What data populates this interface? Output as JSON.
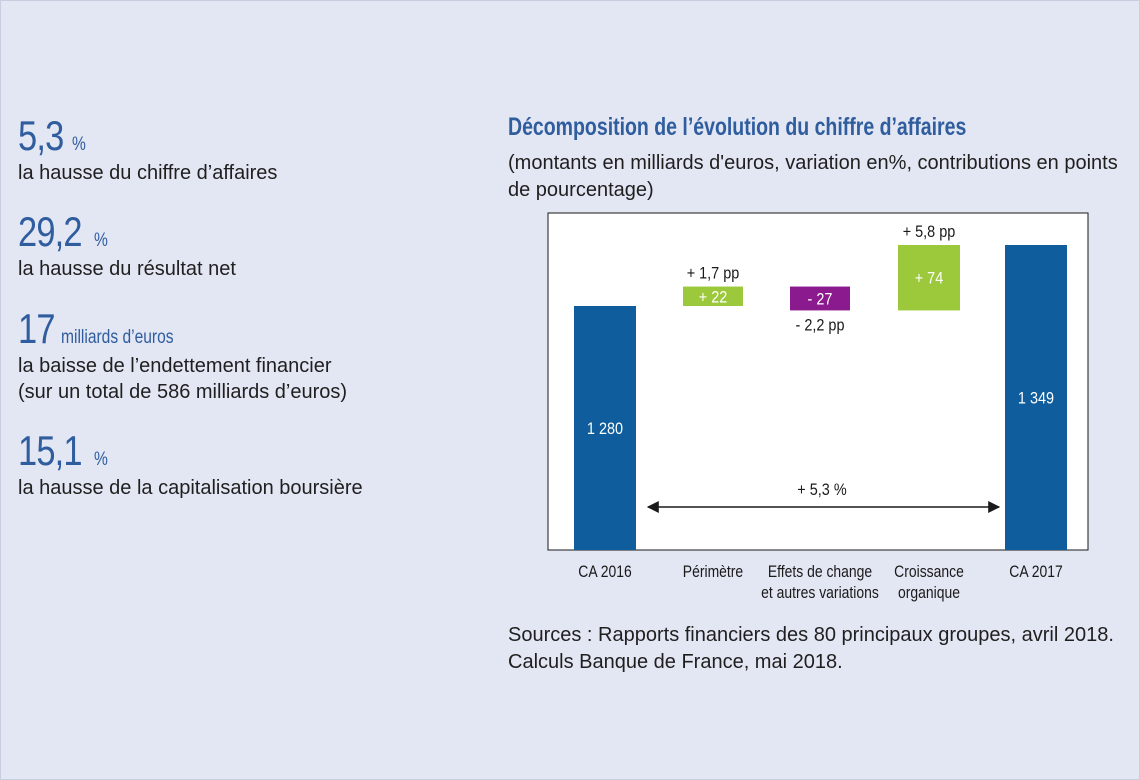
{
  "stats": [
    {
      "value": "5,3",
      "unit": "%",
      "desc": [
        "la hausse du chiffre d’affaires"
      ]
    },
    {
      "value": "29,2",
      "unit": "%",
      "desc": [
        "la hausse du résultat net"
      ]
    },
    {
      "value": "17",
      "unit": "milliards d’euros",
      "desc": [
        "la baisse de l’endettement financier",
        "(sur un total de 586 milliards d’euros)"
      ]
    },
    {
      "value": "15,1",
      "unit": "%",
      "desc": [
        "la hausse de la capitalisation boursière"
      ]
    }
  ],
  "chart_data": {
    "type": "bar",
    "subtype": "waterfall",
    "title": "Décomposition de l’évolution du chiffre d’affaires",
    "subtitle": "(montants en milliards d'euros, variation en%, contributions en points de pourcentage)",
    "categories": [
      {
        "lines": [
          "CA 2016"
        ]
      },
      {
        "lines": [
          "Périmètre"
        ]
      },
      {
        "lines": [
          "Effets de change",
          "et autres variations"
        ]
      },
      {
        "lines": [
          "Croissance",
          "organique"
        ]
      },
      {
        "lines": [
          "CA 2017"
        ]
      }
    ],
    "bars": [
      {
        "kind": "total",
        "start": 0,
        "end": 1280,
        "label": "1 280",
        "annotation": "",
        "color": "#0f5d9c"
      },
      {
        "kind": "delta",
        "start": 1280,
        "end": 1302,
        "label": "+ 22",
        "annotation": "+ 1,7 pp",
        "color": "#9cc83c"
      },
      {
        "kind": "delta",
        "start": 1302,
        "end": 1275,
        "label": "- 27",
        "annotation": "- 2,2 pp",
        "color": "#8b1a8e"
      },
      {
        "kind": "delta",
        "start": 1275,
        "end": 1349,
        "label": "+ 74",
        "annotation": "+ 5,8 pp",
        "color": "#9cc83c"
      },
      {
        "kind": "total",
        "start": 0,
        "end": 1349,
        "label": "1 349",
        "annotation": "",
        "color": "#0f5d9c"
      }
    ],
    "arrow_label": "+ 5,3 %",
    "ylim": [
      0,
      1380
    ]
  },
  "source": [
    "Sources : Rapports financiers des 80 principaux groupes, avril 2018.",
    "Calculs Banque de France, mai 2018."
  ]
}
